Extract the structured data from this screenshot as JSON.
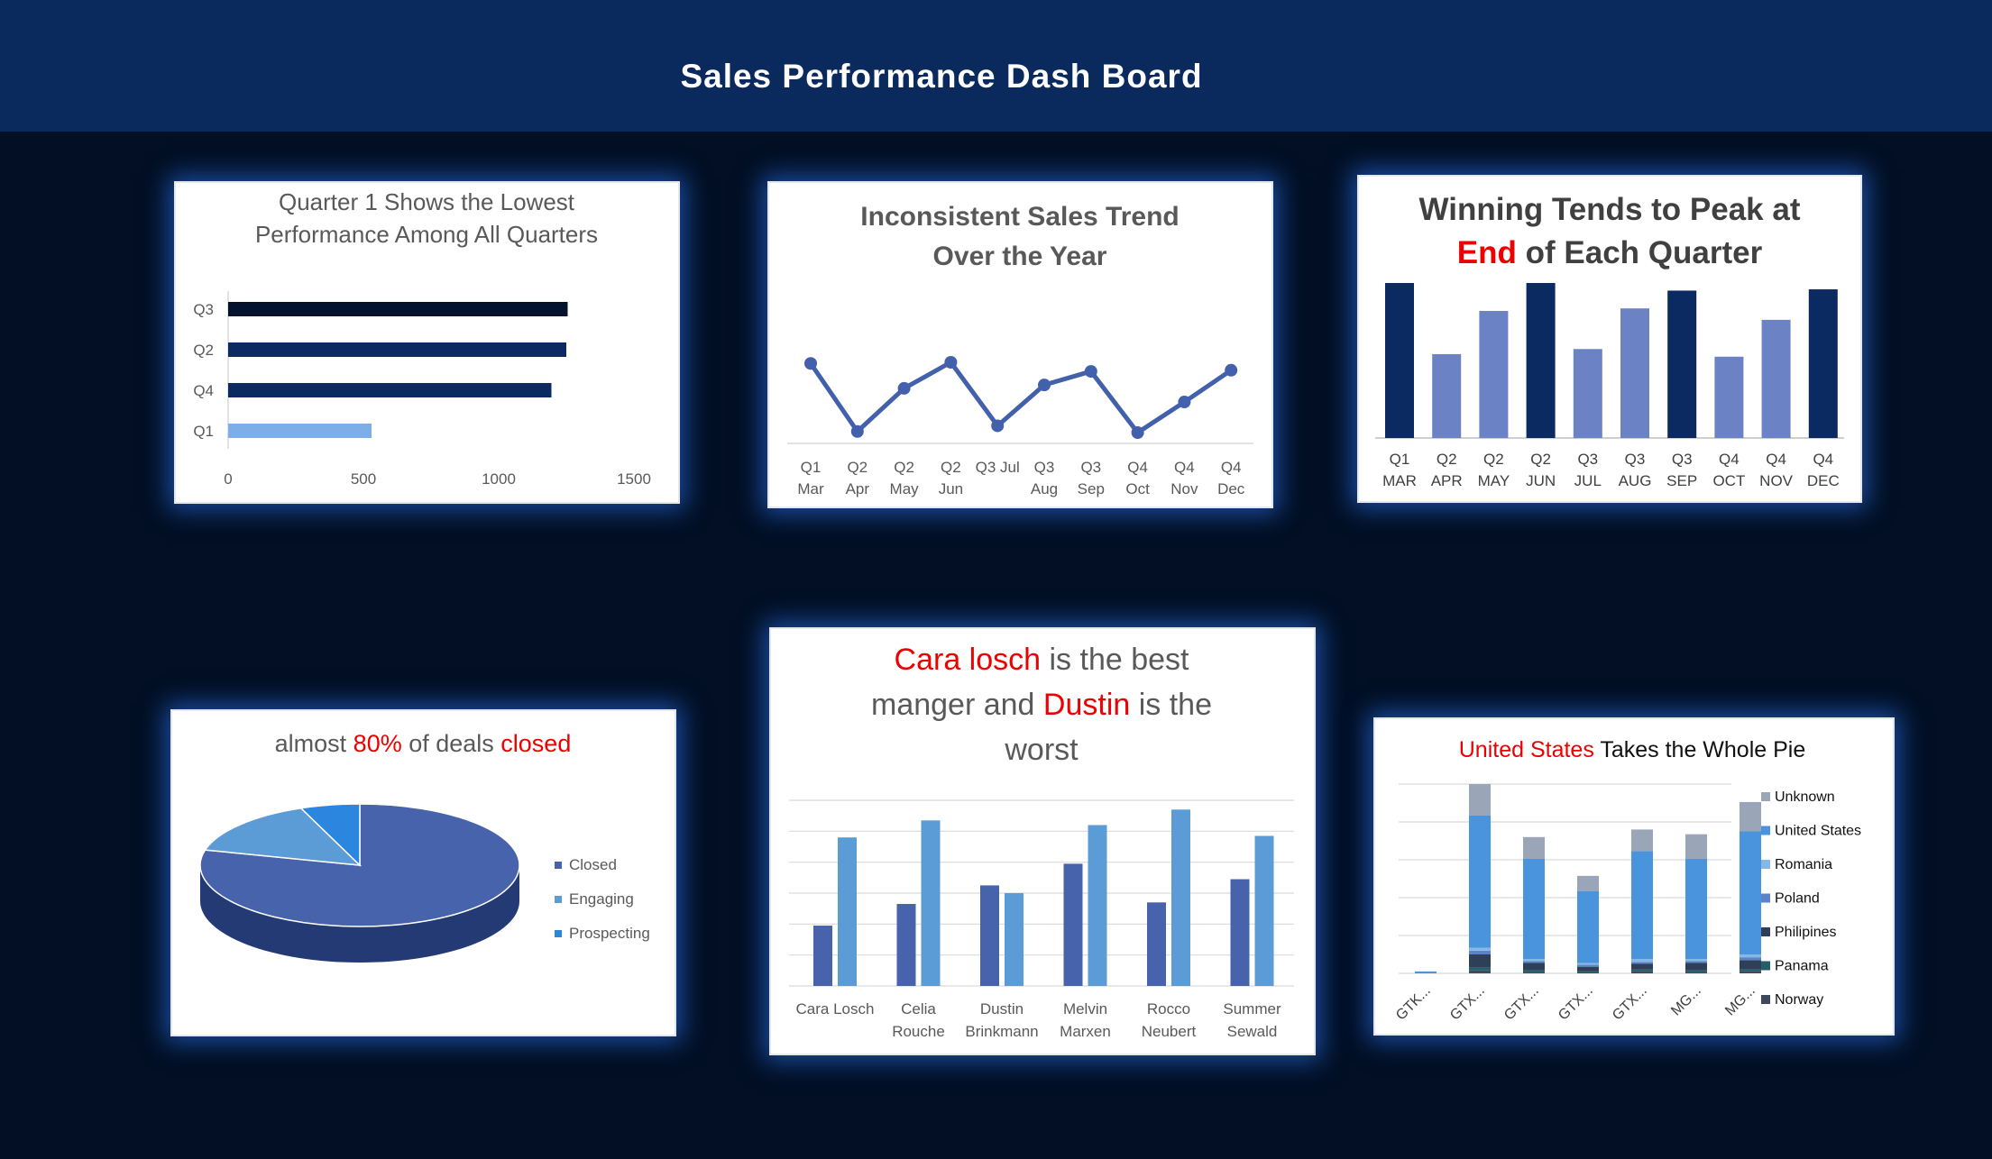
{
  "header": {
    "title": "Sales Performance Dash Board"
  },
  "colors": {
    "red": "#ee0000",
    "dark_navy": "#05122d",
    "navy": "#0b2a62",
    "light_blue": "#7eaee8",
    "mid_blue": "#6b83c4",
    "line": "#4260ab"
  },
  "chart_data": [
    {
      "type": "bar",
      "orientation": "horizontal",
      "title": "Quarter 1 Shows the Lowest Performance Among All Quarters",
      "title_lines": [
        "Quarter 1 Shows the Lowest",
        "Performance Among All Quarters"
      ],
      "categories": [
        "Q3",
        "Q2",
        "Q4",
        "Q1"
      ],
      "values": [
        1255,
        1250,
        1195,
        530
      ],
      "xlim": [
        0,
        1500
      ],
      "xticks": [
        "0",
        "500",
        "1000",
        "1500"
      ]
    },
    {
      "type": "line",
      "title": "Inconsistent Sales Trend Over the Year",
      "title_lines": [
        "Inconsistent Sales Trend",
        "Over the Year"
      ],
      "categories": [
        [
          "Q1",
          "Mar"
        ],
        [
          "Q2",
          "Apr"
        ],
        [
          "Q2",
          "May"
        ],
        [
          "Q2",
          "Jun"
        ],
        [
          "Q3 Jul"
        ],
        [
          "Q3",
          "Aug"
        ],
        [
          "Q3",
          "Sep"
        ],
        [
          "Q4",
          "Oct"
        ],
        [
          "Q4",
          "Nov"
        ],
        [
          "Q4",
          "Dec"
        ]
      ],
      "values": [
        122,
        62,
        100,
        123,
        67,
        103,
        115,
        61,
        88,
        116
      ]
    },
    {
      "type": "bar",
      "title": "Winning Tends to Peak at End of Each Quarter",
      "title_lines": [
        [
          {
            "text": "Winning Tends to Peak at",
            "red": false
          }
        ],
        [
          {
            "text": "End",
            "red": true
          },
          {
            "text": " of Each Quarter",
            "red": false
          }
        ]
      ],
      "categories": [
        [
          "Q1",
          "MAR"
        ],
        [
          "Q2",
          "APR"
        ],
        [
          "Q2",
          "MAY"
        ],
        [
          "Q2",
          "JUN"
        ],
        [
          "Q3",
          "JUL"
        ],
        [
          "Q3",
          "AUG"
        ],
        [
          "Q3",
          "SEP"
        ],
        [
          "Q4",
          "OCT"
        ],
        [
          "Q4",
          "NOV"
        ],
        [
          "Q4",
          "DEC"
        ]
      ],
      "values": [
        122,
        66,
        100,
        122,
        70,
        102,
        116,
        64,
        93,
        117
      ],
      "highlight": [
        true,
        false,
        false,
        true,
        false,
        false,
        true,
        false,
        false,
        true
      ]
    },
    {
      "type": "pie",
      "title": "almost 80% of deals closed",
      "title_parts": [
        {
          "text": "almost ",
          "red": false
        },
        {
          "text": "80%",
          "red": true
        },
        {
          "text": " of deals ",
          "red": false
        },
        {
          "text": "closed",
          "red": true
        }
      ],
      "labels": [
        "Closed",
        "Engaging",
        "Prospecting"
      ],
      "values": [
        79,
        15,
        6
      ],
      "colors": [
        "#4763ac",
        "#5b9cd6",
        "#2a86de"
      ]
    },
    {
      "type": "bar",
      "title": "Cara losch is the best manger and Dustin is the worst",
      "title_lines": [
        [
          {
            "text": "Cara losch",
            "red": true
          },
          {
            "text": " is the best",
            "red": false
          }
        ],
        [
          {
            "text": "manger and ",
            "red": false
          },
          {
            "text": "Dustin",
            "red": true
          },
          {
            "text": " is the",
            "red": false
          }
        ],
        [
          {
            "text": "worst",
            "red": false
          }
        ]
      ],
      "categories": [
        [
          "Cara Losch"
        ],
        [
          "Celia",
          "Rouche"
        ],
        [
          "Dustin",
          "Brinkmann"
        ],
        [
          "Melvin",
          "Marxen"
        ],
        [
          "Rocco",
          "Neubert"
        ],
        [
          "Summer",
          "Sewald"
        ]
      ],
      "series": [
        {
          "color": "#4763ac",
          "values": [
            39,
            53,
            65,
            79,
            54,
            69
          ]
        },
        {
          "color": "#5b9cd6",
          "values": [
            96,
            107,
            60,
            104,
            114,
            97
          ]
        }
      ],
      "ylim": [
        0,
        120
      ]
    },
    {
      "type": "bar",
      "stacked": true,
      "title": "United States Takes the Whole Pie",
      "title_parts": [
        {
          "text": "United States",
          "red": true
        },
        {
          "text": " Takes the Whole Pie",
          "red": false
        }
      ],
      "categories": [
        "GTK...",
        "GTX...",
        "GTX...",
        "GTX...",
        "GTX...",
        "MG...",
        "MG..."
      ],
      "series": [
        {
          "name": "Norway",
          "color": "#3e4a5c",
          "values": [
            0,
            3,
            1,
            1,
            2,
            1,
            2
          ]
        },
        {
          "name": "Panama",
          "color": "#255e6b",
          "values": [
            0,
            3,
            2,
            1,
            2,
            2,
            2
          ]
        },
        {
          "name": "Philipines",
          "color": "#2e4058",
          "values": [
            0,
            14,
            8,
            5,
            6,
            8,
            10
          ]
        },
        {
          "name": "Poland",
          "color": "#5a83c9",
          "values": [
            0,
            4,
            2,
            2,
            2,
            2,
            3
          ]
        },
        {
          "name": "Romania",
          "color": "#86b8e6",
          "values": [
            0,
            3,
            2,
            2,
            3,
            2,
            3
          ]
        },
        {
          "name": "United States",
          "color": "#4a93dd",
          "values": [
            2,
            140,
            106,
            76,
            114,
            106,
            130
          ]
        },
        {
          "name": "Unknown",
          "color": "#9aa5b8",
          "values": [
            0,
            33,
            23,
            16,
            23,
            26,
            31
          ]
        }
      ],
      "legend": [
        "Unknown",
        "United States",
        "Romania",
        "Poland",
        "Philipines",
        "Panama",
        "Norway"
      ],
      "ylim": [
        0,
        200
      ]
    }
  ]
}
